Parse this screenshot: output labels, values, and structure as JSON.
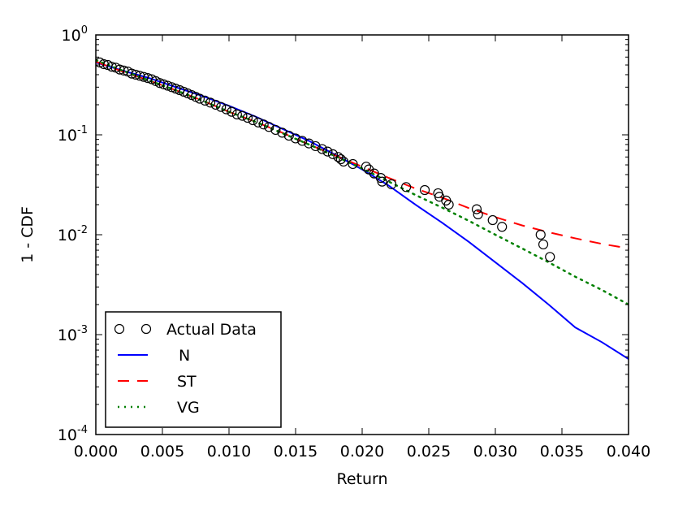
{
  "chart_data": {
    "type": "scatter",
    "title": "",
    "xlabel": "Return",
    "ylabel": "1 - CDF",
    "x_range": [
      0.0,
      0.04
    ],
    "y_range": [
      0.0001,
      1.0
    ],
    "y_scale": "log",
    "grid": false,
    "legend_position": "lower-left",
    "x_ticks": [
      {
        "value": 0.0,
        "label": "0.000"
      },
      {
        "value": 0.005,
        "label": "0.005"
      },
      {
        "value": 0.01,
        "label": "0.010"
      },
      {
        "value": 0.015,
        "label": "0.015"
      },
      {
        "value": 0.02,
        "label": "0.020"
      },
      {
        "value": 0.025,
        "label": "0.025"
      },
      {
        "value": 0.03,
        "label": "0.030"
      },
      {
        "value": 0.035,
        "label": "0.035"
      },
      {
        "value": 0.04,
        "label": "0.040"
      }
    ],
    "y_ticks": [
      {
        "value": 1.0,
        "base": "10",
        "exp": "0"
      },
      {
        "value": 0.1,
        "base": "10",
        "exp": "-1"
      },
      {
        "value": 0.01,
        "base": "10",
        "exp": "-2"
      },
      {
        "value": 0.001,
        "base": "10",
        "exp": "-3"
      },
      {
        "value": 0.0001,
        "base": "10",
        "exp": "-4"
      }
    ],
    "series": [
      {
        "name": "Actual Data",
        "kind": "markers",
        "color": "#000000",
        "x": [
          0.0003,
          0.0006,
          0.0009,
          0.0012,
          0.0015,
          0.0018,
          0.0021,
          0.0024,
          0.0027,
          0.003,
          0.0033,
          0.0036,
          0.0039,
          0.0042,
          0.0045,
          0.0048,
          0.0051,
          0.0054,
          0.0057,
          0.006,
          0.0063,
          0.0066,
          0.0069,
          0.0072,
          0.0075,
          0.0078,
          0.0082,
          0.0086,
          0.009,
          0.0094,
          0.0098,
          0.0102,
          0.0106,
          0.011,
          0.0114,
          0.0118,
          0.0122,
          0.0126,
          0.013,
          0.0135,
          0.014,
          0.0145,
          0.015,
          0.0155,
          0.016,
          0.0165,
          0.017,
          0.0174,
          0.0178,
          0.0182,
          0.0184,
          0.0186,
          0.0193,
          0.0203,
          0.0205,
          0.0209,
          0.0214,
          0.0215,
          0.0222,
          0.0233,
          0.0247,
          0.0257,
          0.0258,
          0.0263,
          0.0265,
          0.0286,
          0.0287,
          0.0298,
          0.0305,
          0.0334,
          0.0336,
          0.0341
        ],
        "y": [
          0.53,
          0.51,
          0.5,
          0.48,
          0.47,
          0.45,
          0.44,
          0.43,
          0.41,
          0.4,
          0.39,
          0.38,
          0.37,
          0.36,
          0.345,
          0.33,
          0.32,
          0.31,
          0.3,
          0.29,
          0.28,
          0.27,
          0.26,
          0.25,
          0.24,
          0.23,
          0.22,
          0.21,
          0.2,
          0.19,
          0.18,
          0.17,
          0.16,
          0.155,
          0.148,
          0.14,
          0.133,
          0.127,
          0.12,
          0.112,
          0.105,
          0.098,
          0.092,
          0.087,
          0.082,
          0.077,
          0.072,
          0.068,
          0.064,
          0.06,
          0.057,
          0.054,
          0.051,
          0.048,
          0.045,
          0.041,
          0.037,
          0.034,
          0.032,
          0.03,
          0.028,
          0.026,
          0.024,
          0.022,
          0.02,
          0.018,
          0.016,
          0.014,
          0.012,
          0.01,
          0.008,
          0.006
        ]
      },
      {
        "name": "N",
        "kind": "solid",
        "color": "#0000ff",
        "x": [
          0.0,
          0.002,
          0.004,
          0.006,
          0.008,
          0.01,
          0.012,
          0.014,
          0.016,
          0.018,
          0.02,
          0.022,
          0.024,
          0.026,
          0.028,
          0.03,
          0.032,
          0.034,
          0.036,
          0.038,
          0.04
        ],
        "y": [
          0.53,
          0.44,
          0.37,
          0.3,
          0.245,
          0.195,
          0.152,
          0.115,
          0.087,
          0.063,
          0.045,
          0.031,
          0.02,
          0.0132,
          0.0085,
          0.0053,
          0.0033,
          0.002,
          0.00118,
          0.00084,
          0.00057
        ]
      },
      {
        "name": "ST",
        "kind": "dashed",
        "color": "#ff0000",
        "x": [
          0.0,
          0.002,
          0.004,
          0.006,
          0.008,
          0.01,
          0.012,
          0.014,
          0.016,
          0.018,
          0.02,
          0.022,
          0.024,
          0.026,
          0.028,
          0.03,
          0.032,
          0.034,
          0.036,
          0.038,
          0.04
        ],
        "y": [
          0.54,
          0.43,
          0.35,
          0.28,
          0.22,
          0.17,
          0.135,
          0.105,
          0.08,
          0.062,
          0.048,
          0.037,
          0.029,
          0.0235,
          0.0185,
          0.015,
          0.0124,
          0.0106,
          0.0092,
          0.0081,
          0.0073
        ]
      },
      {
        "name": "VG",
        "kind": "dotted",
        "color": "#008000",
        "x": [
          0.0,
          0.002,
          0.004,
          0.006,
          0.008,
          0.01,
          0.012,
          0.014,
          0.016,
          0.018,
          0.02,
          0.022,
          0.024,
          0.026,
          0.028,
          0.03,
          0.032,
          0.034,
          0.036,
          0.038,
          0.04
        ],
        "y": [
          0.56,
          0.44,
          0.35,
          0.28,
          0.22,
          0.17,
          0.135,
          0.104,
          0.08,
          0.061,
          0.046,
          0.034,
          0.025,
          0.0187,
          0.0138,
          0.01,
          0.0073,
          0.0053,
          0.0038,
          0.0028,
          0.002
        ]
      }
    ]
  }
}
